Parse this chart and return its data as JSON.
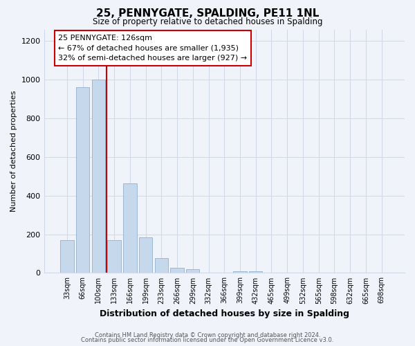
{
  "title": "25, PENNYGATE, SPALDING, PE11 1NL",
  "subtitle": "Size of property relative to detached houses in Spalding",
  "xlabel": "Distribution of detached houses by size in Spalding",
  "ylabel": "Number of detached properties",
  "bar_labels": [
    "33sqm",
    "66sqm",
    "100sqm",
    "133sqm",
    "166sqm",
    "199sqm",
    "233sqm",
    "266sqm",
    "299sqm",
    "332sqm",
    "366sqm",
    "399sqm",
    "432sqm",
    "465sqm",
    "499sqm",
    "532sqm",
    "565sqm",
    "598sqm",
    "632sqm",
    "665sqm",
    "698sqm"
  ],
  "bar_values": [
    170,
    960,
    1000,
    170,
    465,
    185,
    75,
    25,
    20,
    0,
    0,
    10,
    10,
    0,
    0,
    0,
    0,
    0,
    0,
    0,
    0
  ],
  "bar_color": "#c6d9ec",
  "bar_edge_color": "#9ab8d4",
  "vline_x": 2.5,
  "vline_color": "#cc0000",
  "ylim": [
    0,
    1260
  ],
  "yticks": [
    0,
    200,
    400,
    600,
    800,
    1000,
    1200
  ],
  "annotation_title": "25 PENNYGATE: 126sqm",
  "annotation_line1": "← 67% of detached houses are smaller (1,935)",
  "annotation_line2": "32% of semi-detached houses are larger (927) →",
  "footer_line1": "Contains HM Land Registry data © Crown copyright and database right 2024.",
  "footer_line2": "Contains public sector information licensed under the Open Government Licence v3.0.",
  "background_color": "#f0f4fa",
  "grid_color": "#d0d8ea"
}
